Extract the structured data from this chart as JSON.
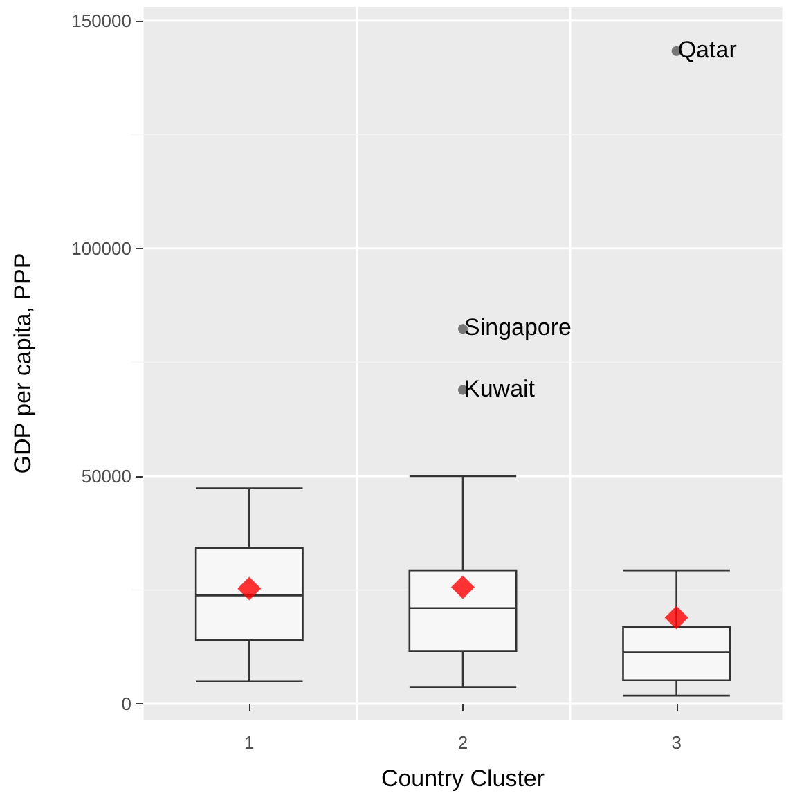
{
  "chart_data": {
    "type": "box",
    "xlabel": "Country Cluster",
    "ylabel": "GDP per capita, PPP",
    "categories": [
      "1",
      "2",
      "3"
    ],
    "boxes": [
      {
        "low": 4900,
        "q1": 14000,
        "median": 23800,
        "q3": 34200,
        "high": 47300,
        "mean": 25300
      },
      {
        "low": 3700,
        "q1": 11600,
        "median": 21000,
        "q3": 29300,
        "high": 50000,
        "mean": 25600,
        "outliers": [
          82300,
          68900
        ]
      },
      {
        "low": 1800,
        "q1": 5200,
        "median": 11300,
        "q3": 16800,
        "high": 29300,
        "mean": 18900,
        "outliers": [
          143300
        ]
      }
    ],
    "color": "#333333",
    "ylim": [
      -3500,
      153000
    ],
    "yticks": [
      0,
      50000,
      100000,
      150000
    ],
    "grid": true,
    "annotations": [
      "Singapore",
      "Kuwait",
      "Qatar"
    ]
  }
}
